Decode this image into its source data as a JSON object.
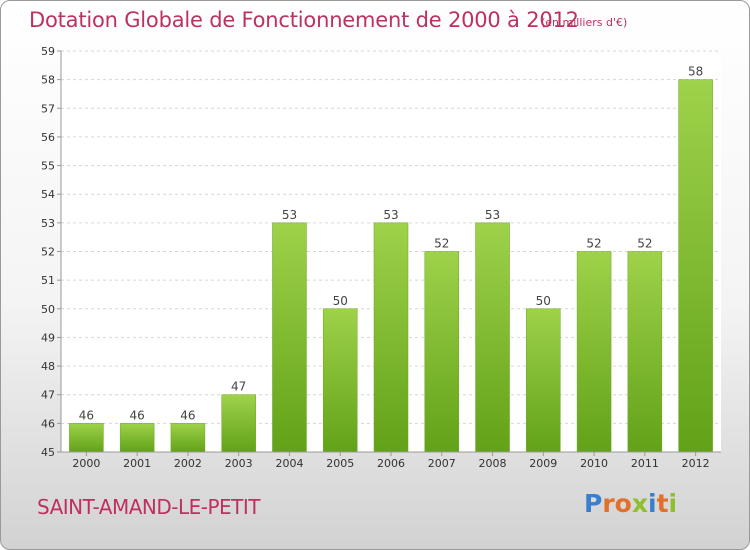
{
  "header": {
    "title": "Dotation Globale de Fonctionnement de 2000 à 2012",
    "subtitle": "(en milliers d'€)"
  },
  "footer": {
    "city": "SAINT-AMAND-LE-PETIT",
    "brand_letters": [
      "P",
      "r",
      "o",
      "x",
      "i",
      "t",
      "i"
    ]
  },
  "colors": {
    "title": "#bf3060",
    "bar_light": "#9ed24a",
    "bar_dark": "#62a218",
    "brand": [
      "#3a7fcf",
      "#e0702a",
      "#e0702a",
      "#8fbf2a",
      "#3a7fcf",
      "#e0702a",
      "#8fbf2a"
    ]
  },
  "chart_data": {
    "type": "bar",
    "title": "Dotation Globale de Fonctionnement de 2000 à 2012",
    "subtitle": "(en milliers d'€)",
    "xlabel": "",
    "ylabel": "",
    "ylim": [
      45,
      59
    ],
    "yticks": [
      45,
      46,
      47,
      48,
      49,
      50,
      51,
      52,
      53,
      54,
      55,
      56,
      57,
      58,
      59
    ],
    "grid": true,
    "categories": [
      "2000",
      "2001",
      "2002",
      "2003",
      "2004",
      "2005",
      "2006",
      "2007",
      "2008",
      "2009",
      "2010",
      "2011",
      "2012"
    ],
    "values": [
      46,
      46,
      46,
      47,
      53,
      50,
      53,
      52,
      53,
      50,
      52,
      52,
      58
    ]
  }
}
